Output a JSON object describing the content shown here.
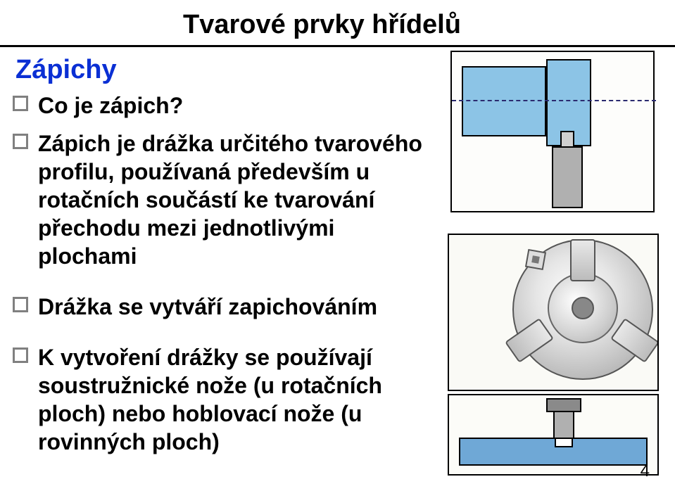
{
  "title": "Tvarové prvky hřídelů",
  "subhead": {
    "text": "Zápichy",
    "color": "#0a2fd4"
  },
  "bullets": [
    {
      "text": "Co je zápich?",
      "bold": true
    },
    {
      "text": "Zápich je drážka určitého tvarového profilu, používaná především u rotačních součástí ke tvarování přechodu mezi jednotlivými plochami",
      "bold": true
    },
    {
      "text": "Drážka se vytváří zapichováním",
      "bold": true
    },
    {
      "text": "K vytvoření drážky se používají soustružnické nože (u rotačních ploch) nebo hoblovací nože (u rovinných ploch)",
      "bold": true
    }
  ],
  "page_number": "4",
  "diagrams": {
    "groove_tool": {
      "type": "infographic",
      "shaft_color": "#8cc4e6",
      "tool_color": "#b0b0b0",
      "tip_color": "#d0d0d0",
      "outline": "#000000",
      "centerline": "#2a2a6f",
      "background": "#fdfdfb"
    },
    "lathe_chuck": {
      "type": "infographic",
      "body_gradient": [
        "#ffffff",
        "#e6e6e6",
        "#bfbfbf",
        "#999999"
      ],
      "inner_gradient": [
        "#ffffff",
        "#d0d0d0",
        "#aaaaaa"
      ],
      "jaw_color": "#d0d0d0",
      "outline": "#555555",
      "background": "#fafaf6"
    },
    "planing": {
      "type": "infographic",
      "workpiece_color": "#6fa8d6",
      "tool_color": "#b0b0b0",
      "holder_color": "#8a8a8a",
      "outline": "#000000",
      "background": "#fcfcf8"
    }
  }
}
